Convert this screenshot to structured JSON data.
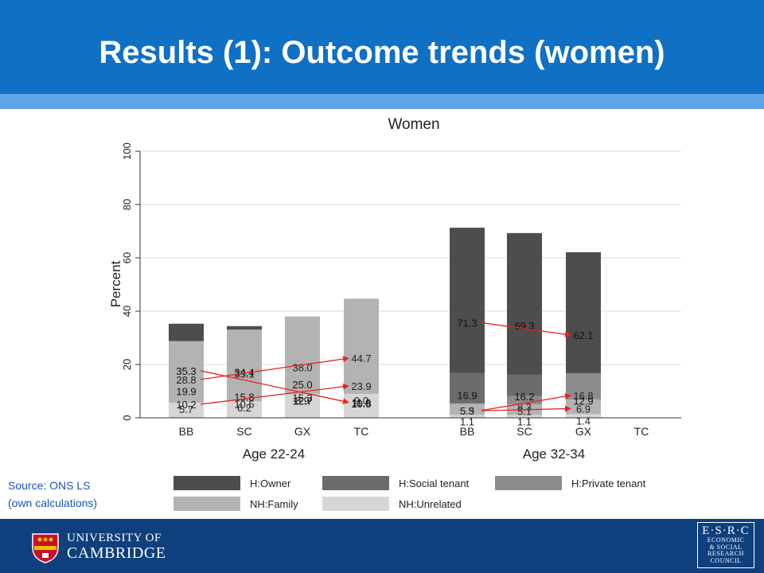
{
  "slide": {
    "title": "Results (1): Outcome trends (women)",
    "source_line1": "Source: ONS LS",
    "source_line2": "(own calculations)"
  },
  "colors": {
    "header_bg": "#0f70c4",
    "accent_band": "#5fa4e6",
    "footer_bg": "#0f3f7c",
    "arrow": "#e8231f"
  },
  "chart_data": {
    "type": "bar",
    "stacked": true,
    "title": "Women",
    "ylabel": "Percent",
    "ylim": [
      0,
      100
    ],
    "yticks": [
      0,
      20,
      40,
      60,
      80,
      100
    ],
    "grid": true,
    "legend_position": "bottom",
    "groups": [
      {
        "label": "Age 22-24",
        "categories": [
          "BB",
          "SC",
          "GX",
          "TC"
        ]
      },
      {
        "label": "Age 32-34",
        "categories": [
          "BB",
          "SC",
          "GX",
          "TC"
        ]
      }
    ],
    "series": [
      {
        "name": "H:Owner",
        "color": "#4d4d4d",
        "values": [
          35.3,
          34.4,
          25.0,
          11.6,
          71.3,
          69.3,
          62.1,
          null
        ],
        "labels": [
          "35.3",
          "34.4",
          "25.0",
          "11.6",
          "71.3",
          "69.3",
          "62.1",
          null
        ]
      },
      {
        "name": "H:Social tenant",
        "color": "#6b6b6b",
        "values": [
          19.9,
          15.8,
          12.7,
          10.8,
          16.9,
          16.2,
          12.9,
          null
        ],
        "labels": [
          "19.9",
          "15.8",
          "12.7",
          "10.8",
          "16.9",
          "16.2",
          "12.9",
          null
        ]
      },
      {
        "name": "H:Private tenant",
        "color": "#8c8c8c",
        "values": [
          10.2,
          10.5,
          15.3,
          23.9,
          5.5,
          8.3,
          16.8,
          null
        ],
        "labels": [
          "10.2",
          "10.5",
          "15.3",
          "23.9",
          "5.5",
          "8.3",
          "16.8",
          null
        ]
      },
      {
        "name": "NH:Family",
        "color": "#b3b3b3",
        "values": [
          28.8,
          33.1,
          38.0,
          44.7,
          5.3,
          5.1,
          6.9,
          null
        ],
        "labels": [
          "28.8",
          "33.1",
          "38.0",
          "44.7",
          "5.3",
          "5.1",
          "6.9",
          null
        ]
      },
      {
        "name": "NH:Unrelated",
        "color": "#d6d6d6",
        "values": [
          5.7,
          6.2,
          8.9,
          9.0,
          1.1,
          1.1,
          1.4,
          null
        ],
        "labels": [
          "5.7",
          "6.2",
          "8.9",
          "9.0",
          "1.1",
          "1.1",
          "1.4",
          null
        ]
      }
    ],
    "annotations": [
      {
        "type": "arrow",
        "series": 3,
        "from_bar": 0,
        "to_bar": 3
      },
      {
        "type": "arrow",
        "series": 2,
        "from_bar": 0,
        "to_bar": 3
      },
      {
        "type": "arrow",
        "series": 0,
        "from_bar": 0,
        "to_bar": 3
      },
      {
        "type": "arrow",
        "series": 3,
        "from_bar": 4,
        "to_bar": 6
      },
      {
        "type": "arrow",
        "series": 2,
        "from_bar": 4,
        "to_bar": 6
      },
      {
        "type": "arrow",
        "series": 0,
        "from_bar": 4,
        "to_bar": 6
      }
    ]
  },
  "footer": {
    "cambridge_line1": "UNIVERSITY OF",
    "cambridge_line2": "CAMBRIDGE",
    "esrc_lines": [
      "E·S·R·C",
      "ECONOMIC",
      "& SOCIAL",
      "RESEARCH",
      "COUNCIL"
    ]
  }
}
